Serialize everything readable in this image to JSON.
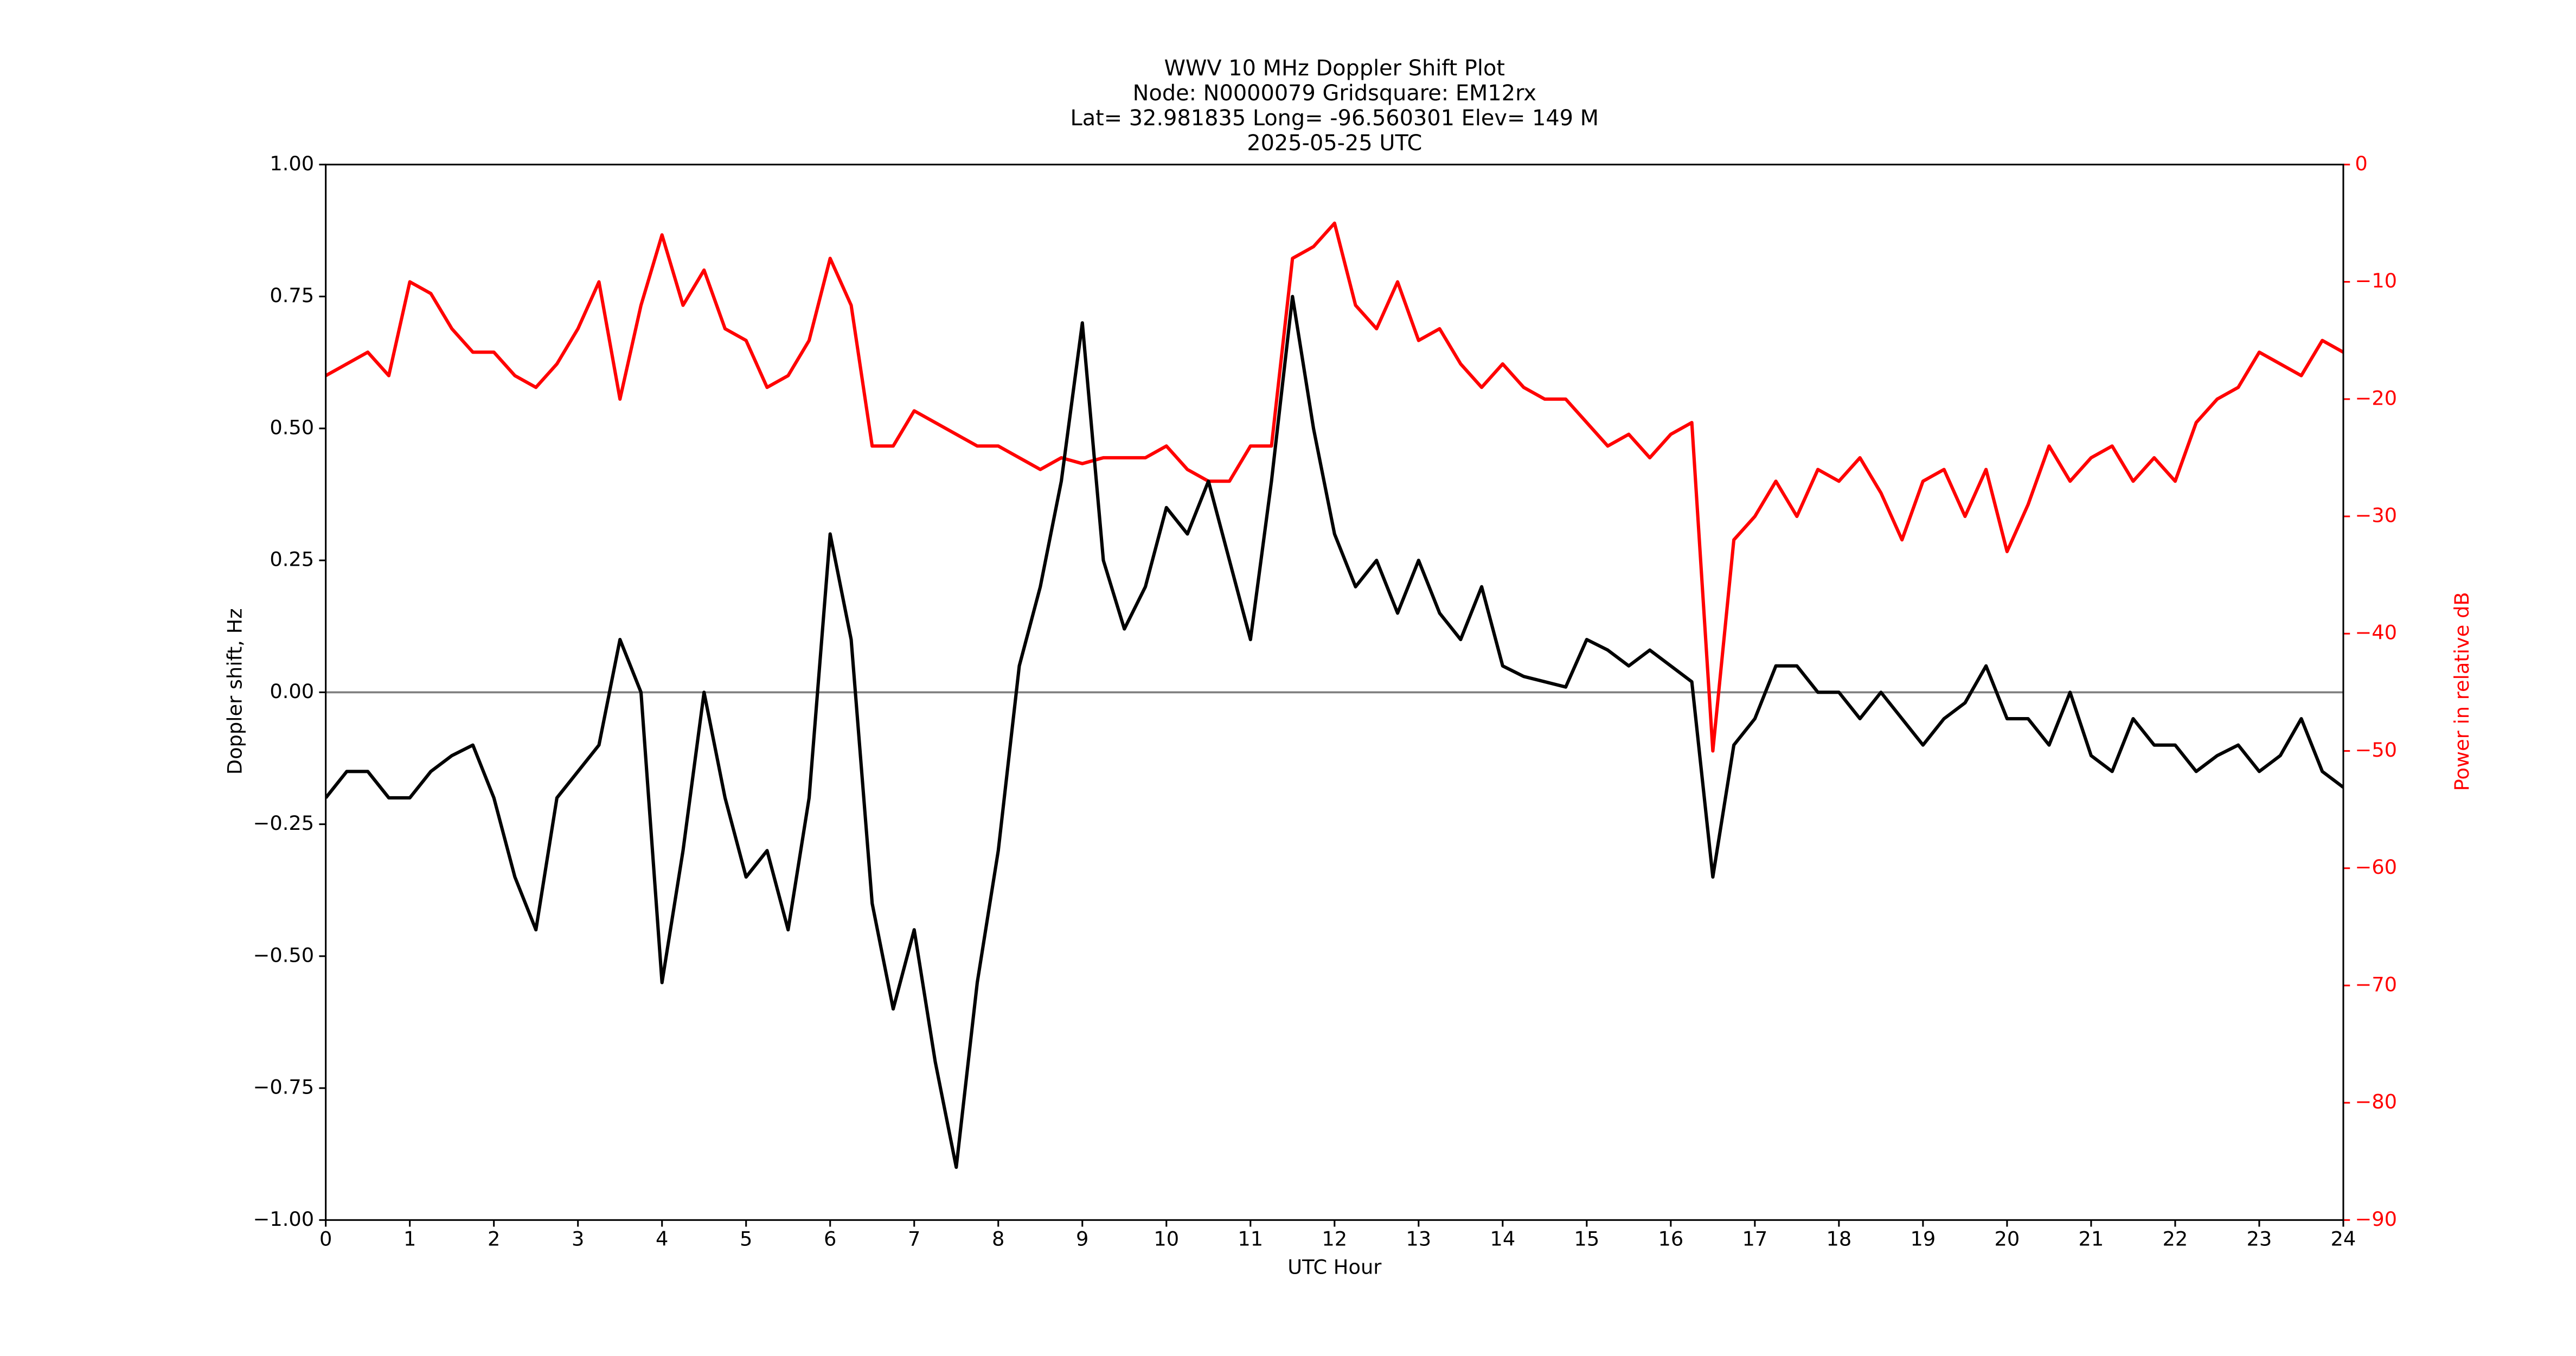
{
  "chart_data": {
    "type": "line",
    "title": "WWV 10 MHz Doppler Shift Plot",
    "subtitle": [
      "Node:  N0000079     Gridsquare:  EM12rx",
      "Lat= 32.981835    Long= -96.560301    Elev= 149 M",
      "2025-05-25  UTC"
    ],
    "xlabel": "UTC Hour",
    "ylabel": "Doppler shift, Hz",
    "y2label": "Power in relative dB",
    "x": [
      0,
      0.25,
      0.5,
      0.75,
      1,
      1.25,
      1.5,
      1.75,
      2,
      2.25,
      2.5,
      2.75,
      3,
      3.25,
      3.5,
      3.75,
      4,
      4.25,
      4.5,
      4.75,
      5,
      5.25,
      5.5,
      5.75,
      6,
      6.25,
      6.5,
      6.75,
      7,
      7.25,
      7.5,
      7.75,
      8,
      8.25,
      8.5,
      8.75,
      9,
      9.25,
      9.5,
      9.75,
      10,
      10.25,
      10.5,
      10.75,
      11,
      11.25,
      11.5,
      11.75,
      12,
      12.25,
      12.5,
      12.75,
      13,
      13.25,
      13.5,
      13.75,
      14,
      14.25,
      14.5,
      14.75,
      15,
      15.25,
      15.5,
      15.75,
      16,
      16.25,
      16.5,
      16.75,
      17,
      17.25,
      17.5,
      17.75,
      18,
      18.25,
      18.5,
      18.75,
      19,
      19.25,
      19.5,
      19.75,
      20,
      20.25,
      20.5,
      20.75,
      21,
      21.25,
      21.5,
      21.75,
      22,
      22.25,
      22.5,
      22.75,
      23,
      23.25,
      23.5,
      23.75,
      24
    ],
    "series": [
      {
        "name": "Doppler shift",
        "color": "#000000",
        "axis": "y",
        "values": [
          -0.2,
          -0.15,
          -0.15,
          -0.2,
          -0.2,
          -0.15,
          -0.12,
          -0.1,
          -0.2,
          -0.35,
          -0.45,
          -0.2,
          -0.15,
          -0.1,
          0.1,
          0.0,
          -0.55,
          -0.3,
          0.0,
          -0.2,
          -0.35,
          -0.3,
          -0.45,
          -0.2,
          0.3,
          0.1,
          -0.4,
          -0.6,
          -0.45,
          -0.7,
          -0.9,
          -0.55,
          -0.3,
          0.05,
          0.2,
          0.4,
          0.7,
          0.25,
          0.12,
          0.2,
          0.35,
          0.3,
          0.4,
          0.25,
          0.1,
          0.4,
          0.75,
          0.5,
          0.3,
          0.2,
          0.25,
          0.15,
          0.25,
          0.15,
          0.1,
          0.2,
          0.05,
          0.03,
          0.02,
          0.01,
          0.1,
          0.08,
          0.05,
          0.08,
          0.05,
          0.02,
          -0.35,
          -0.1,
          -0.05,
          0.05,
          0.05,
          0.0,
          0.0,
          -0.05,
          0.0,
          -0.05,
          -0.1,
          -0.05,
          -0.02,
          0.05,
          -0.05,
          -0.05,
          -0.1,
          0.0,
          -0.12,
          -0.15,
          -0.05,
          -0.1,
          -0.1,
          -0.15,
          -0.12,
          -0.1,
          -0.15,
          -0.12,
          -0.05,
          -0.15,
          -0.18
        ]
      },
      {
        "name": "Power",
        "color": "#ff0000",
        "axis": "y2",
        "values": [
          -18,
          -17,
          -16,
          -18,
          -10,
          -11,
          -14,
          -16,
          -16,
          -18,
          -19,
          -17,
          -14,
          -10,
          -20,
          -12,
          -6,
          -12,
          -9,
          -14,
          -15,
          -19,
          -18,
          -15,
          -8,
          -12,
          -24,
          -24,
          -21,
          -22,
          -23,
          -24,
          -24,
          -25,
          -26,
          -25,
          -25.5,
          -25,
          -25,
          -25,
          -24,
          -26,
          -27,
          -27,
          -24,
          -24,
          -8,
          -7,
          -5,
          -12,
          -14,
          -10,
          -15,
          -14,
          -17,
          -19,
          -17,
          -19,
          -20,
          -20,
          -22,
          -24,
          -23,
          -25,
          -23,
          -22,
          -50,
          -32,
          -30,
          -27,
          -30,
          -26,
          -27,
          -25,
          -28,
          -32,
          -27,
          -26,
          -30,
          -26,
          -33,
          -29,
          -24,
          -27,
          -25,
          -24,
          -27,
          -25,
          -27,
          -22,
          -20,
          -19,
          -16,
          -17,
          -18,
          -15,
          -16
        ]
      }
    ],
    "xlim": [
      0,
      24
    ],
    "xticks": [
      0,
      1,
      2,
      3,
      4,
      5,
      6,
      7,
      8,
      9,
      10,
      11,
      12,
      13,
      14,
      15,
      16,
      17,
      18,
      19,
      20,
      21,
      22,
      23,
      24
    ],
    "ylim": [
      -1,
      1
    ],
    "yticks": [
      {
        "value": -1,
        "label": "−1.00"
      },
      {
        "value": -0.75,
        "label": "−0.75"
      },
      {
        "value": -0.5,
        "label": "−0.50"
      },
      {
        "value": -0.25,
        "label": "−0.25"
      },
      {
        "value": 0,
        "label": "0.00"
      },
      {
        "value": 0.25,
        "label": "0.25"
      },
      {
        "value": 0.5,
        "label": "0.50"
      },
      {
        "value": 0.75,
        "label": "0.75"
      },
      {
        "value": 1,
        "label": "1.00"
      }
    ],
    "y2lim": [
      -90,
      0
    ],
    "y2ticks": [
      {
        "value": -90,
        "label": "−90"
      },
      {
        "value": -80,
        "label": "−80"
      },
      {
        "value": -70,
        "label": "−70"
      },
      {
        "value": -60,
        "label": "−60"
      },
      {
        "value": -50,
        "label": "−50"
      },
      {
        "value": -40,
        "label": "−40"
      },
      {
        "value": -30,
        "label": "−30"
      },
      {
        "value": -20,
        "label": "−20"
      },
      {
        "value": -10,
        "label": "−10"
      },
      0
    ],
    "y2color": "#ff0000",
    "hline": 0,
    "hline_color": "#808080",
    "grid": false
  }
}
